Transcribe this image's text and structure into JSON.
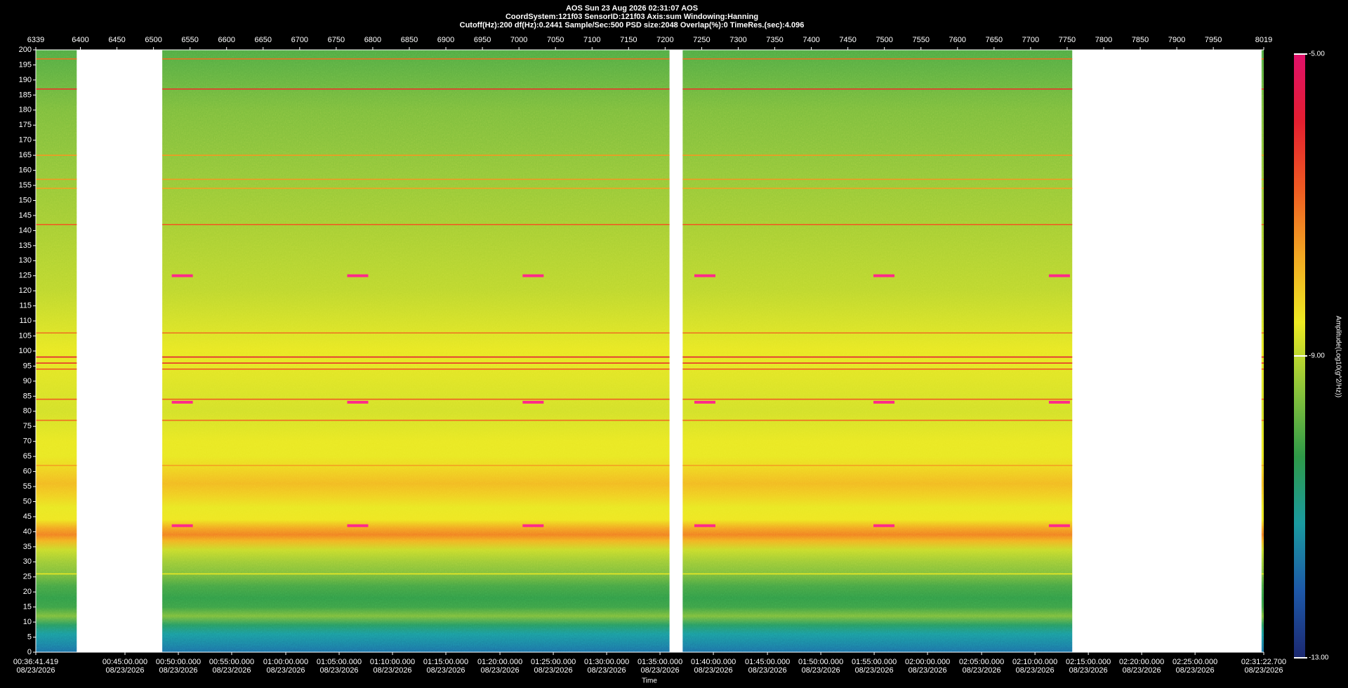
{
  "chart_data": {
    "type": "spectrogram",
    "title": "AOS  Sun 23 Aug 2026 02:31:07  AOS",
    "subtitle": [
      "CoordSystem:121f03   SensorID:121f03   Axis:sum   Windowing:Hanning",
      "Cutoff(Hz):200     df(Hz):0.2441     Sample/Sec:500     PSD size:2048     Overlap(%):0     TimeRes.(sec):4.096"
    ],
    "xlim": [
      6339,
      8019
    ],
    "xticks": [
      6339,
      6400,
      6450,
      6500,
      6550,
      6600,
      6650,
      6700,
      6750,
      6800,
      6850,
      6900,
      6950,
      7000,
      7050,
      7100,
      7150,
      7200,
      7250,
      7300,
      7350,
      7400,
      7450,
      7500,
      7550,
      7600,
      7650,
      7700,
      7750,
      7800,
      7850,
      7900,
      7950,
      8019
    ],
    "time_ticks": [
      {
        "value": 6339,
        "label": "00:36:41.419",
        "date": "08/23/2026"
      },
      {
        "value": 6461,
        "label": "00:45:00.000",
        "date": "08/23/2026"
      },
      {
        "value": 6534,
        "label": "00:50:00.000",
        "date": "08/23/2026"
      },
      {
        "value": 6607,
        "label": "00:55:00.000",
        "date": "08/23/2026"
      },
      {
        "value": 6681,
        "label": "01:00:00.000",
        "date": "08/23/2026"
      },
      {
        "value": 6754,
        "label": "01:05:00.000",
        "date": "08/23/2026"
      },
      {
        "value": 6827,
        "label": "01:10:00.000",
        "date": "08/23/2026"
      },
      {
        "value": 6900,
        "label": "01:15:00.000",
        "date": "08/23/2026"
      },
      {
        "value": 6974,
        "label": "01:20:00.000",
        "date": "08/23/2026"
      },
      {
        "value": 7047,
        "label": "01:25:00.000",
        "date": "08/23/2026"
      },
      {
        "value": 7120,
        "label": "01:30:00.000",
        "date": "08/23/2026"
      },
      {
        "value": 7193,
        "label": "01:35:00.000",
        "date": "08/23/2026"
      },
      {
        "value": 7266,
        "label": "01:40:00.000",
        "date": "08/23/2026"
      },
      {
        "value": 7340,
        "label": "01:45:00.000",
        "date": "08/23/2026"
      },
      {
        "value": 7413,
        "label": "01:50:00.000",
        "date": "08/23/2026"
      },
      {
        "value": 7486,
        "label": "01:55:00.000",
        "date": "08/23/2026"
      },
      {
        "value": 7559,
        "label": "02:00:00.000",
        "date": "08/23/2026"
      },
      {
        "value": 7633,
        "label": "02:05:00.000",
        "date": "08/23/2026"
      },
      {
        "value": 7706,
        "label": "02:10:00.000",
        "date": "08/23/2026"
      },
      {
        "value": 7779,
        "label": "02:15:00.000",
        "date": "08/23/2026"
      },
      {
        "value": 7852,
        "label": "02:20:00.000",
        "date": "08/23/2026"
      },
      {
        "value": 7925,
        "label": "02:25:00.000",
        "date": "08/23/2026"
      },
      {
        "value": 8019,
        "label": "02:31:22.700",
        "date": "08/23/2026"
      }
    ],
    "x_label": "Time",
    "ylim": [
      0,
      200
    ],
    "yticks": [
      0,
      5,
      10,
      15,
      20,
      25,
      30,
      35,
      40,
      45,
      50,
      55,
      60,
      65,
      70,
      75,
      80,
      85,
      90,
      95,
      100,
      105,
      110,
      115,
      120,
      125,
      130,
      135,
      140,
      145,
      150,
      155,
      160,
      165,
      170,
      175,
      180,
      185,
      190,
      195,
      200
    ],
    "data_segments": [
      [
        6339,
        6395
      ],
      [
        6512,
        7206
      ],
      [
        7224,
        7757
      ],
      [
        8016,
        8019
      ]
    ],
    "profile": {
      "frequency": [
        0,
        3,
        6,
        9,
        12,
        15,
        18,
        22,
        26,
        30,
        34,
        37,
        39,
        41,
        44,
        48,
        52,
        56,
        60,
        65,
        70,
        75,
        80,
        90,
        100,
        110,
        120,
        130,
        140,
        150,
        160,
        170,
        180,
        190,
        200
      ],
      "amplitude": [
        -11.8,
        -11.5,
        -11.2,
        -10.6,
        -9.6,
        -10.2,
        -10.3,
        -10.1,
        -9.6,
        -9.3,
        -8.9,
        -7.8,
        -7.2,
        -7.6,
        -8.5,
        -8.6,
        -8.2,
        -7.9,
        -8.2,
        -8.6,
        -8.6,
        -8.7,
        -8.8,
        -8.7,
        -8.6,
        -8.8,
        -9.0,
        -9.1,
        -9.2,
        -9.3,
        -9.4,
        -9.5,
        -9.6,
        -9.8,
        -10.0
      ]
    },
    "tonal_lines": {
      "frequency": [
        197,
        187,
        165,
        157,
        154,
        142,
        106,
        98,
        96,
        94,
        84,
        77,
        62,
        26
      ],
      "amplitude": [
        -7.0,
        -6.2,
        -7.5,
        -7.5,
        -7.6,
        -6.8,
        -7.0,
        -5.8,
        -6.2,
        -6.6,
        -6.8,
        -7.0,
        -7.6,
        -8.6
      ]
    },
    "event_x": [
      6525,
      6765,
      7005,
      7240,
      7485,
      7725
    ],
    "event_frequencies": [
      125,
      83,
      42
    ],
    "event_color": "#ff2a8a",
    "colormap": [
      "#1b2870",
      "#1d58a8",
      "#1a9aa0",
      "#2e9a48",
      "#8cc43a",
      "#eeea22",
      "#f3a722",
      "#ef5a22",
      "#e41e30",
      "#e0106a"
    ],
    "clim": [
      -13,
      -5
    ],
    "cticks": [
      {
        "value": -5,
        "label": "-5.00"
      },
      {
        "value": -9,
        "label": "-9.00"
      },
      {
        "value": -13,
        "label": "-13.00"
      }
    ],
    "colorbar_label": "Amplitude(Log10(g^2/Hz))"
  }
}
